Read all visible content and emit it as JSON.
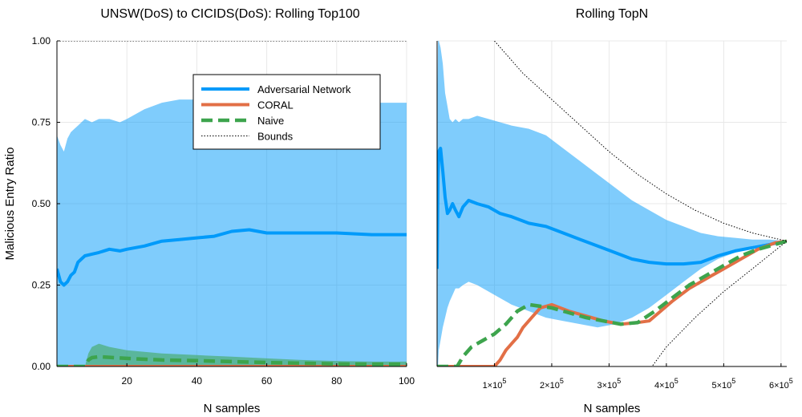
{
  "chart_data": [
    {
      "type": "line",
      "title": "UNSW(DoS) to CICIDS(DoS): Rolling Top100",
      "xlabel": "N samples",
      "ylabel": "Malicious Entry Ratio",
      "xlim": [
        0,
        100
      ],
      "ylim": [
        0,
        1
      ],
      "xticks": [
        20,
        40,
        60,
        80,
        100
      ],
      "xtick_labels": [
        "20",
        "40",
        "60",
        "80",
        "100"
      ],
      "yticks": [
        0,
        0.25,
        0.5,
        0.75,
        1.0
      ],
      "ytick_labels": [
        "0.00",
        "0.25",
        "0.50",
        "0.75",
        "1.00"
      ],
      "grid": true,
      "legend_position": "top-right",
      "series": [
        {
          "name": "Adversarial Network",
          "color": "#009AFA",
          "style": "solid",
          "x": [
            0,
            1,
            2,
            3,
            4,
            5,
            6,
            7,
            8,
            10,
            12,
            15,
            18,
            20,
            25,
            30,
            35,
            40,
            45,
            50,
            55,
            60,
            70,
            80,
            90,
            100
          ],
          "y": [
            0.3,
            0.26,
            0.25,
            0.26,
            0.28,
            0.29,
            0.32,
            0.33,
            0.34,
            0.345,
            0.35,
            0.36,
            0.355,
            0.36,
            0.37,
            0.385,
            0.39,
            0.395,
            0.4,
            0.415,
            0.42,
            0.41,
            0.41,
            0.41,
            0.405,
            0.405
          ],
          "band_upper": [
            0.71,
            0.68,
            0.66,
            0.7,
            0.72,
            0.73,
            0.74,
            0.75,
            0.76,
            0.75,
            0.76,
            0.76,
            0.75,
            0.76,
            0.79,
            0.81,
            0.82,
            0.82,
            0.81,
            0.81,
            0.81,
            0.81,
            0.81,
            0.81,
            0.81,
            0.81
          ],
          "band_lower": [
            0,
            0,
            0,
            0,
            0,
            0,
            0,
            0,
            0,
            0,
            0,
            0,
            0,
            0,
            0,
            0,
            0,
            0,
            0,
            0,
            0,
            0,
            0,
            0,
            0,
            0
          ]
        },
        {
          "name": "CORAL",
          "color": "#E26F46",
          "style": "solid",
          "x": [
            0,
            100
          ],
          "y": [
            0.0,
            0.0
          ]
        },
        {
          "name": "Naive",
          "color": "#3DA44D",
          "style": "dashed",
          "x": [
            0,
            8,
            9,
            10,
            12,
            15,
            20,
            30,
            40,
            50,
            60,
            70,
            80,
            90,
            100
          ],
          "y": [
            0.0,
            0.0,
            0.02,
            0.027,
            0.03,
            0.028,
            0.025,
            0.02,
            0.018,
            0.015,
            0.012,
            0.01,
            0.008,
            0.007,
            0.007
          ],
          "band_upper": [
            0,
            0,
            0.04,
            0.06,
            0.07,
            0.06,
            0.05,
            0.04,
            0.035,
            0.03,
            0.025,
            0.02,
            0.017,
            0.015,
            0.015
          ],
          "band_lower": [
            0,
            0,
            0,
            0,
            0,
            0,
            0,
            0,
            0,
            0,
            0,
            0,
            0,
            0,
            0
          ]
        },
        {
          "name": "Bounds",
          "color": "#000000",
          "style": "dotted",
          "x": [
            0,
            100
          ],
          "y": [
            1.0,
            1.0
          ],
          "lower_y": [
            0.0,
            0.0
          ]
        }
      ]
    },
    {
      "type": "line",
      "title": "Rolling TopN",
      "xlabel": "N samples",
      "ylabel": "",
      "xlim": [
        0,
        610000
      ],
      "ylim": [
        0,
        1
      ],
      "xticks": [
        100000,
        200000,
        300000,
        400000,
        500000,
        600000
      ],
      "xtick_labels": [
        "1×10",
        "2×10",
        "3×10",
        "4×10",
        "5×10",
        "6×10"
      ],
      "xtick_exponent": "5",
      "grid": true,
      "series": [
        {
          "name": "Adversarial Network",
          "color": "#009AFA",
          "style": "solid",
          "x": [
            0,
            1500,
            3000,
            6000,
            10000,
            14000,
            18000,
            22000,
            27000,
            32000,
            38000,
            45000,
            55000,
            70000,
            90000,
            110000,
            130000,
            160000,
            190000,
            220000,
            250000,
            280000,
            310000,
            340000,
            370000,
            400000,
            430000,
            460000,
            490000,
            520000,
            550000,
            580000,
            610000
          ],
          "y": [
            0.3,
            0.58,
            0.66,
            0.67,
            0.6,
            0.52,
            0.47,
            0.48,
            0.5,
            0.48,
            0.46,
            0.49,
            0.51,
            0.5,
            0.49,
            0.47,
            0.46,
            0.44,
            0.43,
            0.41,
            0.39,
            0.37,
            0.35,
            0.33,
            0.32,
            0.315,
            0.315,
            0.32,
            0.34,
            0.355,
            0.365,
            0.375,
            0.385
          ],
          "band_upper": [
            0.75,
            1.0,
            1.0,
            0.98,
            0.93,
            0.84,
            0.8,
            0.76,
            0.75,
            0.76,
            0.75,
            0.76,
            0.76,
            0.77,
            0.76,
            0.75,
            0.74,
            0.73,
            0.71,
            0.67,
            0.63,
            0.59,
            0.55,
            0.51,
            0.48,
            0.45,
            0.43,
            0.41,
            0.4,
            0.395,
            0.39,
            0.39,
            0.385
          ],
          "band_lower": [
            0.0,
            0.0,
            0.05,
            0.08,
            0.12,
            0.15,
            0.18,
            0.2,
            0.22,
            0.24,
            0.24,
            0.25,
            0.26,
            0.25,
            0.23,
            0.21,
            0.19,
            0.17,
            0.15,
            0.14,
            0.13,
            0.12,
            0.13,
            0.15,
            0.18,
            0.22,
            0.26,
            0.3,
            0.33,
            0.35,
            0.37,
            0.38,
            0.385
          ]
        },
        {
          "name": "CORAL",
          "color": "#E26F46",
          "style": "solid",
          "x": [
            0,
            100000,
            110000,
            120000,
            130000,
            140000,
            150000,
            165000,
            180000,
            200000,
            230000,
            260000,
            290000,
            320000,
            350000,
            370000,
            390000,
            410000,
            440000,
            470000,
            500000,
            530000,
            560000,
            590000,
            610000
          ],
          "y": [
            0.0,
            0.0,
            0.02,
            0.05,
            0.07,
            0.09,
            0.12,
            0.15,
            0.18,
            0.19,
            0.17,
            0.155,
            0.14,
            0.13,
            0.135,
            0.14,
            0.17,
            0.2,
            0.24,
            0.27,
            0.3,
            0.33,
            0.36,
            0.38,
            0.385
          ]
        },
        {
          "name": "Naive",
          "color": "#3DA44D",
          "style": "dashed",
          "x": [
            0,
            35000,
            45000,
            60000,
            80000,
            100000,
            120000,
            140000,
            160000,
            180000,
            200000,
            230000,
            260000,
            290000,
            320000,
            350000,
            380000,
            410000,
            440000,
            470000,
            500000,
            530000,
            560000,
            590000,
            610000
          ],
          "y": [
            0.0,
            0.0,
            0.03,
            0.06,
            0.08,
            0.1,
            0.13,
            0.17,
            0.19,
            0.185,
            0.18,
            0.165,
            0.15,
            0.14,
            0.13,
            0.135,
            0.17,
            0.21,
            0.25,
            0.28,
            0.31,
            0.34,
            0.36,
            0.375,
            0.385
          ]
        },
        {
          "name": "Bounds",
          "color": "#000000",
          "style": "dotted",
          "upper_x": [
            100000,
            120000,
            150000,
            200000,
            250000,
            300000,
            350000,
            400000,
            450000,
            500000,
            550000,
            610000
          ],
          "upper_y": [
            1.0,
            0.96,
            0.9,
            0.82,
            0.74,
            0.66,
            0.59,
            0.53,
            0.48,
            0.44,
            0.41,
            0.385
          ],
          "lower_x": [
            0,
            375000,
            400000,
            450000,
            500000,
            550000,
            610000
          ],
          "lower_y": [
            0.0,
            0.0,
            0.06,
            0.15,
            0.23,
            0.3,
            0.385
          ]
        }
      ]
    }
  ]
}
